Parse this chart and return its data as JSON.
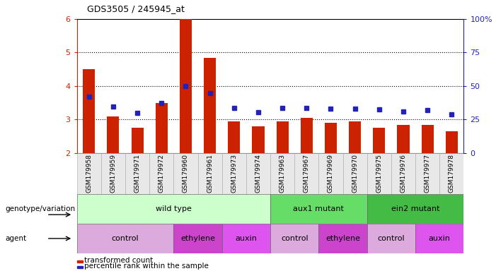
{
  "title": "GDS3505 / 245945_at",
  "samples": [
    "GSM179958",
    "GSM179959",
    "GSM179971",
    "GSM179972",
    "GSM179960",
    "GSM179961",
    "GSM179973",
    "GSM179974",
    "GSM179963",
    "GSM179967",
    "GSM179969",
    "GSM179970",
    "GSM179975",
    "GSM179976",
    "GSM179977",
    "GSM179978"
  ],
  "bar_values": [
    4.5,
    3.1,
    2.75,
    3.5,
    6.0,
    4.85,
    2.95,
    2.8,
    2.95,
    3.05,
    2.9,
    2.95,
    2.75,
    2.85,
    2.85,
    2.65
  ],
  "dot_values": [
    3.68,
    3.38,
    3.2,
    3.5,
    4.0,
    3.78,
    3.35,
    3.22,
    3.35,
    3.35,
    3.32,
    3.32,
    3.3,
    3.25,
    3.28,
    3.15
  ],
  "ylim_left": [
    2,
    6
  ],
  "yticks_left": [
    2,
    3,
    4,
    5,
    6
  ],
  "bar_color": "#cc2200",
  "dot_color": "#2222bb",
  "bar_bottom": 2,
  "genotype_groups": [
    {
      "label": "wild type",
      "start": 0,
      "end": 8,
      "color": "#ccffcc"
    },
    {
      "label": "aux1 mutant",
      "start": 8,
      "end": 12,
      "color": "#66dd66"
    },
    {
      "label": "ein2 mutant",
      "start": 12,
      "end": 16,
      "color": "#44bb44"
    }
  ],
  "agent_groups": [
    {
      "label": "control",
      "start": 0,
      "end": 4,
      "color": "#ddaadd"
    },
    {
      "label": "ethylene",
      "start": 4,
      "end": 6,
      "color": "#cc44cc"
    },
    {
      "label": "auxin",
      "start": 6,
      "end": 8,
      "color": "#dd55ee"
    },
    {
      "label": "control",
      "start": 8,
      "end": 10,
      "color": "#ddaadd"
    },
    {
      "label": "ethylene",
      "start": 10,
      "end": 12,
      "color": "#cc44cc"
    },
    {
      "label": "control",
      "start": 12,
      "end": 14,
      "color": "#ddaadd"
    },
    {
      "label": "auxin",
      "start": 14,
      "end": 16,
      "color": "#dd55ee"
    }
  ],
  "legend_bar_label": "transformed count",
  "legend_dot_label": "percentile rank within the sample",
  "xlabel_genotype": "genotype/variation",
  "xlabel_agent": "agent",
  "right_tick_labels": [
    "0",
    "25",
    "50",
    "75",
    "100%"
  ],
  "background_color": "#ffffff",
  "tick_color_left": "#cc2200",
  "tick_color_right": "#2222bb"
}
